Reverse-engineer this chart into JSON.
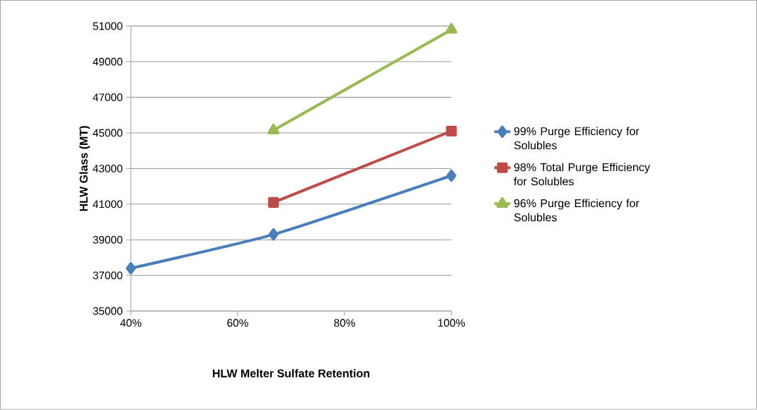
{
  "chart_data": {
    "type": "line",
    "xlabel": "HLW Melter Sulfate Retention",
    "ylabel": "HLW Glass (MT)",
    "xlim": [
      40,
      100
    ],
    "xticks": [
      {
        "value": 40,
        "label": "40%"
      },
      {
        "value": 60,
        "label": "60%"
      },
      {
        "value": 80,
        "label": "80%"
      },
      {
        "value": 100,
        "label": "100%"
      }
    ],
    "ylim": [
      35000,
      51000
    ],
    "yticks": [
      35000,
      37000,
      39000,
      41000,
      43000,
      45000,
      47000,
      49000,
      51000
    ],
    "grid": "y",
    "legend": "right",
    "line_style": "solid",
    "series": [
      {
        "name": "99% Purge Efficiency for Solubles",
        "color": "#4a7ebb",
        "marker": "diamond",
        "x": [
          40,
          66.7,
          100
        ],
        "values": [
          37400,
          39300,
          42600
        ]
      },
      {
        "name": "98% Total  Purge Efficiency for Solubles",
        "color": "#be4b48",
        "marker": "square",
        "x": [
          66.7,
          100
        ],
        "values": [
          41100,
          45100
        ]
      },
      {
        "name": "96% Purge Efficiency for Solubles",
        "color": "#98b954",
        "marker": "triangle",
        "x": [
          66.7,
          100
        ],
        "values": [
          45150,
          50800
        ]
      }
    ]
  }
}
